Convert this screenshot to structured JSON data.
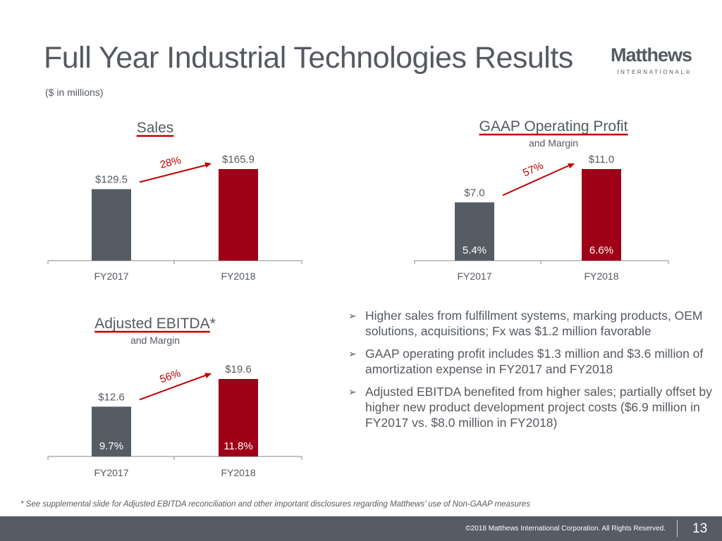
{
  "slide": {
    "title": "Full Year Industrial Technologies Results",
    "units": "($ in millions)",
    "logo": {
      "main": "Matthews",
      "sub": "INTERNATIONAL®"
    },
    "footnote": "* See supplemental slide for Adjusted EBITDA reconciliation and other important disclosures regarding Matthews’ use of Non-GAAP measures",
    "footer": {
      "copyright": "©2018 Matthews International Corporation. All Rights Reserved.",
      "page": "13"
    }
  },
  "colors": {
    "fy2017": "#555c64",
    "fy2018": "#9e0018",
    "accent": "#c00000",
    "text": "#555a60"
  },
  "bullets": [
    "Higher sales from fulfillment systems, marking products, OEM solutions, acquisitions; Fx was $1.2 million favorable",
    "GAAP operating profit includes $1.3 million and $3.6 million of amortization expense in FY2017 and FY2018",
    "Adjusted EBITDA benefited from higher sales; partially offset by higher new product development project costs ($6.9 million in FY2017 vs. $8.0 million in FY2018)"
  ],
  "chart_data": [
    {
      "type": "bar",
      "title": "Sales",
      "subtitle": "",
      "categories": [
        "FY2017",
        "FY2018"
      ],
      "values": [
        129.5,
        165.9
      ],
      "value_labels": [
        "$129.5",
        "$165.9"
      ],
      "margin_labels": [],
      "growth_label": "28%",
      "xlabel": "",
      "ylabel": "",
      "grid": false
    },
    {
      "type": "bar",
      "title": "GAAP Operating Profit",
      "subtitle": "and Margin",
      "categories": [
        "FY2017",
        "FY2018"
      ],
      "values": [
        7.0,
        11.0
      ],
      "value_labels": [
        "$7.0",
        "$11.0"
      ],
      "margin_labels": [
        "5.4%",
        "6.6%"
      ],
      "growth_label": "57%",
      "xlabel": "",
      "ylabel": "",
      "grid": false
    },
    {
      "type": "bar",
      "title": "Adjusted EBITDA*",
      "subtitle": "and Margin",
      "categories": [
        "FY2017",
        "FY2018"
      ],
      "values": [
        12.6,
        19.6
      ],
      "value_labels": [
        "$12.6",
        "$19.6"
      ],
      "margin_labels": [
        "9.7%",
        "11.8%"
      ],
      "growth_label": "56%",
      "xlabel": "",
      "ylabel": "",
      "grid": false
    }
  ]
}
